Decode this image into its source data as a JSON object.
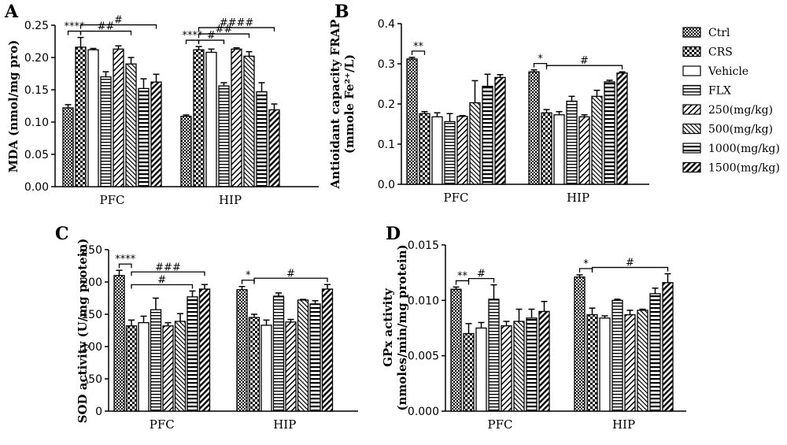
{
  "figure": {
    "legend": [
      "Ctrl",
      "CRS",
      "Vehicle",
      "FLX",
      "250(mg/kg)",
      "500(mg/kg)",
      "1000(mg/kg)",
      "1500(mg/kg)"
    ],
    "patterns": [
      "checker",
      "checker-bold",
      "open",
      "hstripe",
      "diag",
      "diag-fine",
      "hstripe-bold",
      "diag-bold"
    ]
  },
  "chart_data": [
    {
      "panel": "A",
      "type": "bar",
      "ylabel": "MDA (nmol/mg pro)",
      "categories": [
        "PFC",
        "HIP"
      ],
      "ylim": [
        0,
        0.25
      ],
      "yticks": [
        0.0,
        0.05,
        0.1,
        0.15,
        0.2,
        0.25
      ],
      "ytick_labels": [
        "0.00",
        "0.05",
        "0.10",
        "0.15",
        "0.20",
        "0.25"
      ],
      "series": [
        {
          "name": "Ctrl",
          "values": [
            0.122,
            0.109
          ],
          "err": [
            0.005,
            0.002
          ]
        },
        {
          "name": "CRS",
          "values": [
            0.216,
            0.212
          ],
          "err": [
            0.015,
            0.005
          ]
        },
        {
          "name": "Vehicle",
          "values": [
            0.212,
            0.208
          ],
          "err": [
            0.002,
            0.005
          ]
        },
        {
          "name": "FLX",
          "values": [
            0.17,
            0.156
          ],
          "err": [
            0.008,
            0.005
          ]
        },
        {
          "name": "250(mg/kg)",
          "values": [
            0.213,
            0.213
          ],
          "err": [
            0.005,
            0.002
          ]
        },
        {
          "name": "500(mg/kg)",
          "values": [
            0.19,
            0.202
          ],
          "err": [
            0.01,
            0.007
          ]
        },
        {
          "name": "1000(mg/kg)",
          "values": [
            0.152,
            0.147
          ],
          "err": [
            0.015,
            0.014
          ]
        },
        {
          "name": "1500(mg/kg)",
          "values": [
            0.162,
            0.119
          ],
          "err": [
            0.012,
            0.009
          ]
        }
      ],
      "annotations": [
        {
          "text": "****",
          "group": 0,
          "from": 0,
          "to": 1,
          "level": 0
        },
        {
          "text": "##",
          "group": 0,
          "from": 1,
          "to": 5,
          "level": 0
        },
        {
          "text": "#",
          "group": 0,
          "from": 1,
          "to": 7,
          "level": 1
        },
        {
          "text": "****",
          "group": 1,
          "from": 0,
          "to": 1,
          "level": 0
        },
        {
          "text": "#",
          "group": 1,
          "from": 1,
          "to": 3,
          "level": 0
        },
        {
          "text": "##",
          "group": 1,
          "from": 1,
          "to": 5,
          "level": 1
        },
        {
          "text": "####",
          "group": 1,
          "from": 1,
          "to": 7,
          "level": 2
        }
      ]
    },
    {
      "panel": "B",
      "type": "bar",
      "ylabel": "Antioidant capacity FRAP\n(mmole Fe²⁺/L)",
      "categories": [
        "PFC",
        "HIP"
      ],
      "ylim": [
        0,
        0.4
      ],
      "yticks": [
        0.0,
        0.1,
        0.2,
        0.3,
        0.4
      ],
      "ytick_labels": [
        "0.0",
        "0.1",
        "0.2",
        "0.3",
        "0.4"
      ],
      "series": [
        {
          "name": "Ctrl",
          "values": [
            0.312,
            0.28
          ],
          "err": [
            0.004,
            0.005
          ]
        },
        {
          "name": "CRS",
          "values": [
            0.176,
            0.178
          ],
          "err": [
            0.005,
            0.008
          ]
        },
        {
          "name": "Vehicle",
          "values": [
            0.168,
            0.173
          ],
          "err": [
            0.01,
            0.008
          ]
        },
        {
          "name": "FLX",
          "values": [
            0.156,
            0.207
          ],
          "err": [
            0.02,
            0.012
          ]
        },
        {
          "name": "250(mg/kg)",
          "values": [
            0.169,
            0.168
          ],
          "err": [
            0.002,
            0.005
          ]
        },
        {
          "name": "500(mg/kg)",
          "values": [
            0.203,
            0.219
          ],
          "err": [
            0.055,
            0.015
          ]
        },
        {
          "name": "1000(mg/kg)",
          "values": [
            0.244,
            0.255
          ],
          "err": [
            0.03,
            0.004
          ]
        },
        {
          "name": "1500(mg/kg)",
          "values": [
            0.266,
            0.277
          ],
          "err": [
            0.007,
            0.003
          ]
        }
      ],
      "annotations": [
        {
          "text": "**",
          "group": 0,
          "from": 0,
          "to": 1,
          "level": 0
        },
        {
          "text": "*",
          "group": 1,
          "from": 0,
          "to": 1,
          "level": 0
        },
        {
          "text": "#",
          "group": 1,
          "from": 1,
          "to": 7,
          "level": 0
        }
      ]
    },
    {
      "panel": "C",
      "type": "bar",
      "ylabel": "SOD activity (U/mg protein)",
      "categories": [
        "PFC",
        "HIP"
      ],
      "ylim": [
        0,
        250
      ],
      "yticks": [
        0,
        50,
        100,
        150,
        200,
        250
      ],
      "ytick_labels": [
        "0",
        "\\50",
        "100",
        "150",
        "200",
        "250"
      ],
      "series": [
        {
          "name": "Ctrl",
          "values": [
            210,
            188
          ],
          "err": [
            8,
            5
          ]
        },
        {
          "name": "CRS",
          "values": [
            132,
            145
          ],
          "err": [
            9,
            5
          ]
        },
        {
          "name": "Vehicle",
          "values": [
            137,
            133
          ],
          "err": [
            10,
            8
          ]
        },
        {
          "name": "FLX",
          "values": [
            157,
            178
          ],
          "err": [
            18,
            5
          ]
        },
        {
          "name": "250(mg/kg)",
          "values": [
            132,
            138
          ],
          "err": [
            5,
            4
          ]
        },
        {
          "name": "500(mg/kg)",
          "values": [
            139,
            172
          ],
          "err": [
            12,
            1
          ]
        },
        {
          "name": "1000(mg/kg)",
          "values": [
            177,
            166
          ],
          "err": [
            9,
            5
          ]
        },
        {
          "name": "1500(mg/kg)",
          "values": [
            189,
            189
          ],
          "err": [
            7,
            7
          ]
        }
      ],
      "annotations": [
        {
          "text": "****",
          "group": 0,
          "from": 0,
          "to": 1,
          "level": 0
        },
        {
          "text": "#",
          "group": 0,
          "from": 1,
          "to": 6,
          "level": 0
        },
        {
          "text": "###",
          "group": 0,
          "from": 1,
          "to": 7,
          "level": 1
        },
        {
          "text": "*",
          "group": 1,
          "from": 0,
          "to": 1,
          "level": 0
        },
        {
          "text": "#",
          "group": 1,
          "from": 1,
          "to": 7,
          "level": 0
        }
      ]
    },
    {
      "panel": "D",
      "type": "bar",
      "ylabel": "GPx activity\n(nmoles/min/mg protein)",
      "categories": [
        "PFC",
        "HIP"
      ],
      "ylim": [
        0,
        0.015
      ],
      "yticks": [
        0,
        0.005,
        0.01,
        0.015
      ],
      "ytick_labels": [
        "0.000",
        "0.005",
        "0.010",
        "0.015"
      ],
      "series": [
        {
          "name": "Ctrl",
          "values": [
            0.011,
            0.0121
          ],
          "err": [
            0.0002,
            0.0002
          ]
        },
        {
          "name": "CRS",
          "values": [
            0.007,
            0.0087
          ],
          "err": [
            0.0009,
            0.0006
          ]
        },
        {
          "name": "Vehicle",
          "values": [
            0.0075,
            0.0084
          ],
          "err": [
            0.0005,
            0.0002
          ]
        },
        {
          "name": "FLX",
          "values": [
            0.0101,
            0.01
          ],
          "err": [
            0.0013,
            0.0001
          ]
        },
        {
          "name": "250(mg/kg)",
          "values": [
            0.0077,
            0.0087
          ],
          "err": [
            0.0004,
            0.0004
          ]
        },
        {
          "name": "500(mg/kg)",
          "values": [
            0.0081,
            0.0091
          ],
          "err": [
            0.0011,
            0.0001
          ]
        },
        {
          "name": "1000(mg/kg)",
          "values": [
            0.0084,
            0.0106
          ],
          "err": [
            0.0008,
            0.0005
          ]
        },
        {
          "name": "1500(mg/kg)",
          "values": [
            0.009,
            0.0116
          ],
          "err": [
            0.0009,
            0.0008
          ]
        }
      ],
      "annotations": [
        {
          "text": "**",
          "group": 0,
          "from": 0,
          "to": 1,
          "level": 0
        },
        {
          "text": "#",
          "group": 0,
          "from": 1,
          "to": 3,
          "level": 0
        },
        {
          "text": "*",
          "group": 1,
          "from": 0,
          "to": 1,
          "level": 0
        },
        {
          "text": "#",
          "group": 1,
          "from": 1,
          "to": 7,
          "level": 0
        }
      ]
    }
  ]
}
